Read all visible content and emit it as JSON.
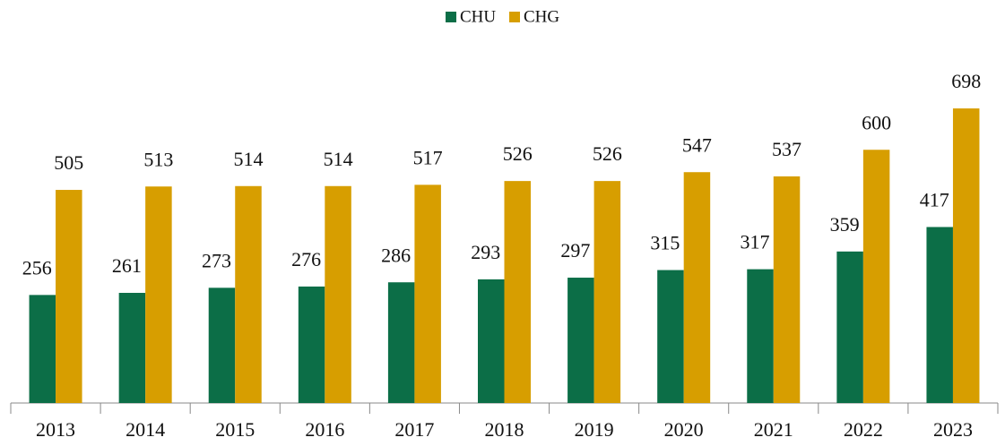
{
  "chart_data": {
    "type": "bar",
    "categories": [
      "2013",
      "2014",
      "2015",
      "2016",
      "2017",
      "2018",
      "2019",
      "2020",
      "2021",
      "2022",
      "2023"
    ],
    "series": [
      {
        "name": "CHU",
        "color": "#0c6e47",
        "values": [
          256,
          261,
          273,
          276,
          286,
          293,
          297,
          315,
          317,
          359,
          417
        ]
      },
      {
        "name": "CHG",
        "color": "#d79e00",
        "values": [
          505,
          513,
          514,
          514,
          517,
          526,
          526,
          547,
          537,
          600,
          698
        ]
      }
    ],
    "ylim": [
      0,
      800
    ],
    "legend": "top"
  }
}
